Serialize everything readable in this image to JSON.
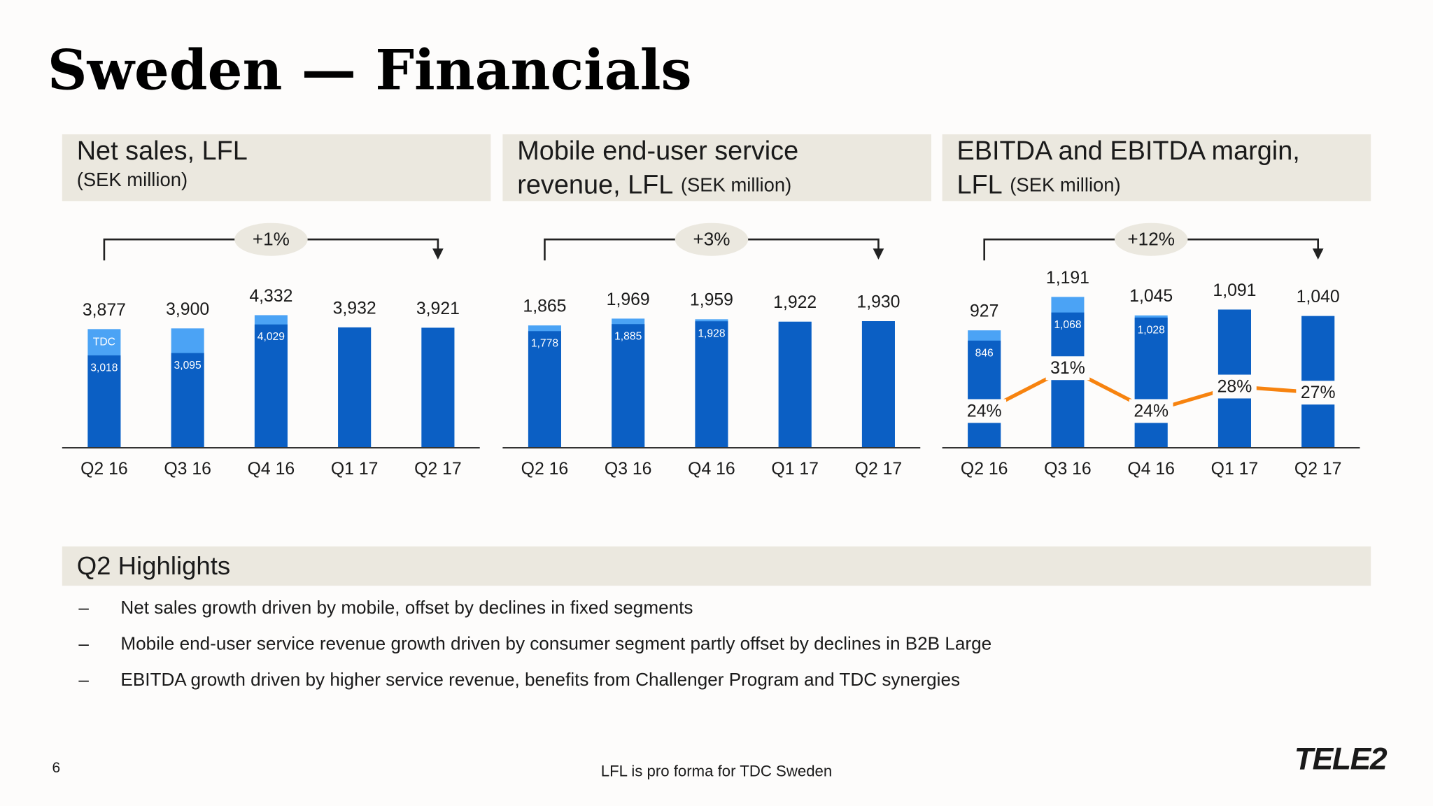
{
  "slide": {
    "title": "Sweden — Financials",
    "highlights_title": "Q2 Highlights",
    "highlights": [
      "Net sales growth driven by mobile, offset by declines in fixed segments",
      "Mobile end-user service revenue growth driven by consumer segment partly offset by declines in B2B Large",
      "EBITDA growth driven by higher service revenue, benefits from Challenger Program and TDC synergies"
    ],
    "bullet": "–",
    "footnote": "LFL is pro forma for TDC Sweden",
    "page_number": "6",
    "logo": "TELE2"
  },
  "chart_data": [
    {
      "type": "bar",
      "title_lines": [
        "Net sales, LFL"
      ],
      "subtitle": "(SEK million)",
      "subtitle_inline": false,
      "growth_label": "+1%",
      "categories": [
        "Q2 16",
        "Q3 16",
        "Q4 16",
        "Q1 17",
        "Q2 17"
      ],
      "ylim": [
        0,
        6000
      ],
      "series": [
        {
          "name": "TDC",
          "color": "#4ba3f5",
          "label_position": "top",
          "values": [
            3877,
            3900,
            4332,
            3932,
            3921
          ],
          "value_labels": [
            "3,877",
            "3,900",
            "4,332",
            "3,932",
            "3,921"
          ]
        },
        {
          "color": "#0b5fc4",
          "label_position": "inside",
          "values": [
            3018,
            3095,
            4029,
            3932,
            3921
          ],
          "value_labels": [
            "3,018",
            "3,095",
            "4,029",
            null,
            null
          ]
        }
      ]
    },
    {
      "type": "bar",
      "title_lines": [
        "Mobile end-user service",
        "revenue, LFL"
      ],
      "subtitle": "(SEK million)",
      "subtitle_inline": true,
      "growth_label": "+3%",
      "categories": [
        "Q2 16",
        "Q3 16",
        "Q4 16",
        "Q1 17",
        "Q2 17"
      ],
      "ylim": [
        0,
        2800
      ],
      "series": [
        {
          "color": "#4ba3f5",
          "label_position": "top",
          "values": [
            1865,
            1969,
            1959,
            1922,
            1930
          ],
          "value_labels": [
            "1,865",
            "1,969",
            "1,959",
            "1,922",
            "1,930"
          ]
        },
        {
          "color": "#0b5fc4",
          "label_position": "inside",
          "values": [
            1778,
            1885,
            1928,
            1922,
            1930
          ],
          "value_labels": [
            "1,778",
            "1,885",
            "1,928",
            null,
            null
          ]
        }
      ]
    },
    {
      "type": "bar",
      "title_lines": [
        "EBITDA and EBITDA margin,",
        "LFL"
      ],
      "subtitle": "(SEK million)",
      "subtitle_inline": true,
      "growth_label": "+12%",
      "categories": [
        "Q2 16",
        "Q3 16",
        "Q4 16",
        "Q1 17",
        "Q2 17"
      ],
      "ylim": [
        0,
        1450
      ],
      "y2lim": [
        18,
        48
      ],
      "series": [
        {
          "color": "#4ba3f5",
          "label_position": "top",
          "values": [
            927,
            1191,
            1045,
            1091,
            1040
          ],
          "value_labels": [
            "927",
            "1,191",
            "1,045",
            "1,091",
            "1,040"
          ]
        },
        {
          "color": "#0b5fc4",
          "label_position": "inside",
          "values": [
            846,
            1068,
            1028,
            1091,
            1040
          ],
          "value_labels": [
            "846",
            "1,068",
            "1,028",
            null,
            null
          ]
        },
        {
          "type": "line",
          "axis": "y2",
          "color": "#f7830f",
          "values": [
            24,
            31,
            24,
            28,
            27
          ],
          "value_labels": [
            "24%",
            "31%",
            "24%",
            "28%",
            "27%"
          ]
        }
      ]
    }
  ]
}
